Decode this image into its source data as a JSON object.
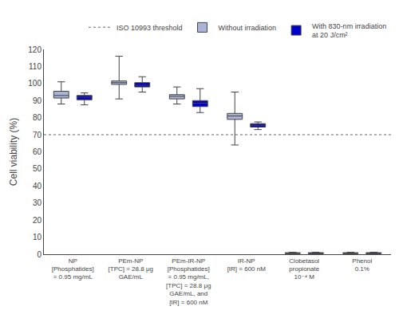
{
  "chart_data": {
    "type": "box",
    "categories": [
      "NP\n[Phosphatides]\n= 0.95 mg/mL",
      "PEm-NP\n[TPC] = 28.8 μg\nGAE/mL",
      "PEm-IR-NP\n[Phosphatides]\n= 0.95 mg/mL,\n[TPC] = 28.8 μg\nGAE/mL, and\n[IR] = 600 nM",
      "IR-NP\n[IR] = 600 nM",
      "Clobetasol\npropionate\n10⁻⁴ M",
      "Phenol\n0.1%"
    ],
    "series": [
      {
        "name": "Without irradiation",
        "color": "#aab4d8",
        "q1": [
          91.5,
          99.5,
          91.0,
          79.0,
          0.3,
          0.3
        ],
        "median": [
          93.0,
          100.5,
          92.5,
          81.0,
          0.6,
          0.6
        ],
        "q3": [
          95.5,
          101.5,
          93.5,
          82.5,
          0.9,
          0.9
        ],
        "whisker_low": [
          88.0,
          91.0,
          88.0,
          64.0,
          0.1,
          0.1
        ],
        "whisker_high": [
          101.0,
          116.0,
          98.0,
          95.0,
          1.2,
          1.2
        ]
      },
      {
        "name": "With 830-nm irradiation\nat 20 J/cm²",
        "color": "#0000cc",
        "q1": [
          90.5,
          98.0,
          86.5,
          74.5,
          0.3,
          0.3
        ],
        "median": [
          92.0,
          99.0,
          88.5,
          75.5,
          0.6,
          0.6
        ],
        "q3": [
          93.0,
          100.5,
          90.0,
          76.5,
          0.9,
          0.9
        ],
        "whisker_low": [
          87.5,
          95.0,
          83.0,
          73.0,
          0.1,
          0.1
        ],
        "whisker_high": [
          94.5,
          104.0,
          97.0,
          77.5,
          1.2,
          1.2
        ]
      }
    ],
    "threshold": {
      "value": 70,
      "label": "ISO 10993 threshold",
      "color": "#999999",
      "line_style": "dotted"
    },
    "ylabel": "Cell viability (%)",
    "ylim": [
      0,
      120
    ],
    "yticks": [
      0,
      10,
      20,
      30,
      40,
      50,
      60,
      70,
      80,
      90,
      100,
      110,
      120
    ],
    "grid": false,
    "legend": "upper right"
  }
}
